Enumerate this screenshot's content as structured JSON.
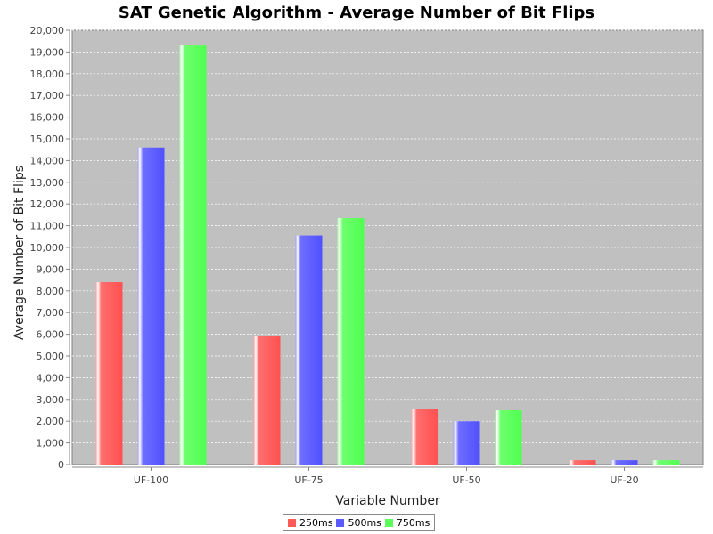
{
  "chart_data": {
    "type": "bar",
    "title": "SAT Genetic Algorithm - Average Number of Bit Flips",
    "xlabel": "Variable Number",
    "ylabel": "Average Number of Bit Flips",
    "categories": [
      "UF-100",
      "UF-75",
      "UF-50",
      "UF-20"
    ],
    "series": [
      {
        "name": "250ms",
        "color": "#ff5a5a",
        "values": [
          8400,
          5900,
          2550,
          200
        ]
      },
      {
        "name": "500ms",
        "color": "#5a5aff",
        "values": [
          14600,
          10550,
          2000,
          200
        ]
      },
      {
        "name": "750ms",
        "color": "#5aff5a",
        "values": [
          19300,
          11350,
          2500,
          200
        ]
      }
    ],
    "ylim": [
      0,
      20000
    ],
    "yticks": [
      0,
      1000,
      2000,
      3000,
      4000,
      5000,
      6000,
      7000,
      8000,
      9000,
      10000,
      11000,
      12000,
      13000,
      14000,
      15000,
      16000,
      17000,
      18000,
      19000,
      20000
    ],
    "ytick_labels": [
      "0",
      "1,000",
      "2,000",
      "3,000",
      "4,000",
      "5,000",
      "6,000",
      "7,000",
      "8,000",
      "9,000",
      "10,000",
      "11,000",
      "12,000",
      "13,000",
      "14,000",
      "15,000",
      "16,000",
      "17,000",
      "18,000",
      "19,000",
      "20,000"
    ],
    "grid": true,
    "plot_background": "#c0c0c0",
    "grid_color": "#ffffff",
    "legend_position": "bottom"
  }
}
